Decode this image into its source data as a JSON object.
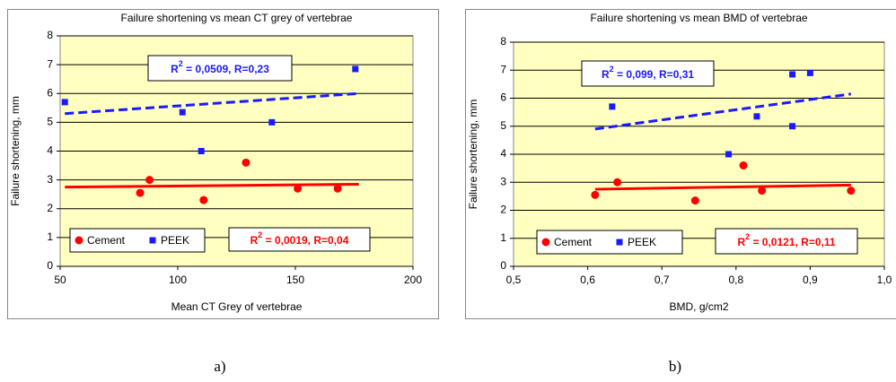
{
  "chart_data": [
    {
      "type": "scatter",
      "title": "Failure shortening vs mean CT grey of vertebrae",
      "xlabel": "Mean CT Grey of vertebrae",
      "ylabel": "Failure shortening, mm",
      "xlim": [
        50,
        200
      ],
      "xticks": [
        50,
        100,
        150,
        200
      ],
      "ylim": [
        0,
        8
      ],
      "yticks": [
        0,
        1,
        2,
        3,
        4,
        5,
        6,
        7,
        8
      ],
      "grid": true,
      "series": [
        {
          "name": "Cement",
          "color": "#ff0000",
          "marker": "circle",
          "x": [
            88,
            84,
            111,
            129,
            151,
            168
          ],
          "values": [
            3.0,
            2.55,
            2.3,
            3.6,
            2.7,
            2.7
          ],
          "trend": {
            "x": [
              52,
              177
            ],
            "values": [
              2.75,
              2.85
            ],
            "dashed": false
          }
        },
        {
          "name": "PEEK",
          "color": "#1a1aff",
          "marker": "square",
          "x": [
            52,
            102,
            110,
            140,
            175.5
          ],
          "values": [
            5.7,
            5.35,
            4.0,
            5.0,
            6.85
          ],
          "trend": {
            "x": [
              52,
              177
            ],
            "values": [
              5.3,
              6.0
            ],
            "dashed": true
          }
        }
      ],
      "annotations": [
        {
          "prefix": "R",
          "sup": "2",
          "rest": " = 0,0509, R=0,23",
          "color": "#1a1aff"
        },
        {
          "prefix": "R",
          "sup": "2",
          "rest": " = 0,0019, R=0,04",
          "color": "#ff0000"
        }
      ]
    },
    {
      "type": "scatter",
      "title": "Failure shortening vs mean BMD of vertebrae",
      "xlabel": "BMD, g/cm2",
      "ylabel": "Failure shortening, mm",
      "xlim": [
        0.5,
        1.0
      ],
      "xticks": [
        {
          "value": 0.5,
          "label": "0,5"
        },
        {
          "value": 0.6,
          "label": "0,6"
        },
        {
          "value": 0.7,
          "label": "0,7"
        },
        {
          "value": 0.8,
          "label": "0,8"
        },
        {
          "value": 0.9,
          "label": "0,9"
        },
        {
          "value": 1.0,
          "label": "1,0"
        }
      ],
      "ylim": [
        0,
        8
      ],
      "yticks": [
        0,
        1,
        2,
        3,
        4,
        5,
        6,
        7,
        8
      ],
      "grid": true,
      "series": [
        {
          "name": "Cement",
          "color": "#ff0000",
          "marker": "circle",
          "x": [
            0.61,
            0.64,
            0.745,
            0.81,
            0.835,
            0.955
          ],
          "values": [
            2.55,
            3.0,
            2.35,
            3.6,
            2.7,
            2.7
          ],
          "trend": {
            "x": [
              0.61,
              0.955
            ],
            "values": [
              2.75,
              2.9
            ],
            "dashed": false
          }
        },
        {
          "name": "PEEK",
          "color": "#1a1aff",
          "marker": "square",
          "x": [
            0.633,
            0.79,
            0.828,
            0.876,
            0.876,
            0.9
          ],
          "values": [
            5.7,
            4.0,
            5.35,
            6.85,
            5.0,
            6.9
          ],
          "trend": {
            "x": [
              0.61,
              0.955
            ],
            "values": [
              4.9,
              6.15
            ],
            "dashed": true
          }
        }
      ],
      "annotations": [
        {
          "prefix": "R",
          "sup": "2",
          "rest": " = 0,099, R=0,31",
          "color": "#1a1aff"
        },
        {
          "prefix": "R",
          "sup": "2",
          "rest": " = 0,0121, R=0,11",
          "color": "#ff0000"
        }
      ]
    }
  ],
  "captions": [
    "a)",
    "b)"
  ]
}
